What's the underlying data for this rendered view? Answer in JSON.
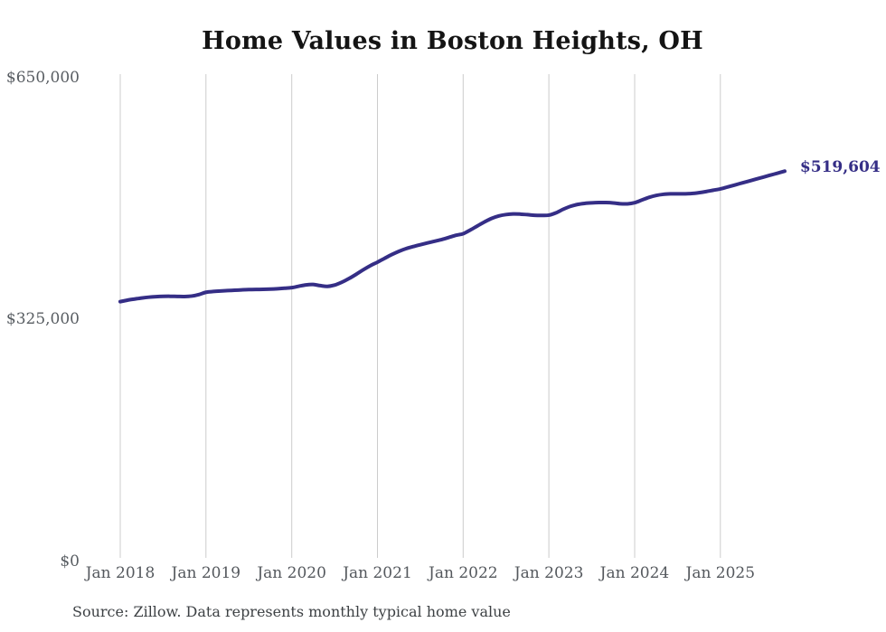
{
  "source": "Source: Zillow. Data represents monthly typical home value",
  "chart_data": {
    "type": "line",
    "title": "Home Values in Boston Heights, OH",
    "series_name": "Typical home value",
    "end_label": "$519,604",
    "end_value": 519604,
    "ylim": [
      0,
      650000
    ],
    "grid": "vertical-only",
    "legend": "none",
    "line_color": "#352e86",
    "end_label_color": "#352e86",
    "grid_color": "#cccccc",
    "axis_label_color": "#585d62",
    "y_ticks": [
      {
        "value": 0,
        "label": "$0"
      },
      {
        "value": 325000,
        "label": "$325,000"
      },
      {
        "value": 650000,
        "label": "$650,000"
      }
    ],
    "x_ticks": [
      "Jan 2018",
      "Jan 2019",
      "Jan 2020",
      "Jan 2021",
      "Jan 2022",
      "Jan 2023",
      "Jan 2024",
      "Jan 2025"
    ],
    "x": [
      "Jan 2018",
      "Feb 2018",
      "Mar 2018",
      "Apr 2018",
      "May 2018",
      "Jun 2018",
      "Jul 2018",
      "Aug 2018",
      "Sep 2018",
      "Oct 2018",
      "Nov 2018",
      "Dec 2018",
      "Jan 2019",
      "Feb 2019",
      "Mar 2019",
      "Apr 2019",
      "May 2019",
      "Jun 2019",
      "Jul 2019",
      "Aug 2019",
      "Sep 2019",
      "Oct 2019",
      "Nov 2019",
      "Dec 2019",
      "Jan 2020",
      "Feb 2020",
      "Mar 2020",
      "Apr 2020",
      "May 2020",
      "Jun 2020",
      "Jul 2020",
      "Aug 2020",
      "Sep 2020",
      "Oct 2020",
      "Nov 2020",
      "Dec 2020",
      "Jan 2021",
      "Feb 2021",
      "Mar 2021",
      "Apr 2021",
      "May 2021",
      "Jun 2021",
      "Jul 2021",
      "Aug 2021",
      "Sep 2021",
      "Oct 2021",
      "Nov 2021",
      "Dec 2021",
      "Jan 2022",
      "Feb 2022",
      "Mar 2022",
      "Apr 2022",
      "May 2022",
      "Jun 2022",
      "Jul 2022",
      "Aug 2022",
      "Sep 2022",
      "Oct 2022",
      "Nov 2022",
      "Dec 2022",
      "Jan 2023",
      "Feb 2023",
      "Mar 2023",
      "Apr 2023",
      "May 2023",
      "Jun 2023",
      "Jul 2023",
      "Aug 2023",
      "Sep 2023",
      "Oct 2023",
      "Nov 2023",
      "Dec 2023",
      "Jan 2024",
      "Feb 2024",
      "Mar 2024",
      "Apr 2024",
      "May 2024",
      "Jun 2024",
      "Jul 2024",
      "Aug 2024",
      "Sep 2024",
      "Oct 2024",
      "Nov 2024",
      "Dec 2024",
      "Jan 2025",
      "Feb 2025",
      "Mar 2025",
      "Apr 2025",
      "May 2025",
      "Jun 2025",
      "Jul 2025",
      "Aug 2025",
      "Sep 2025",
      "Oct 2025"
    ],
    "values": [
      344300,
      346300,
      347800,
      349200,
      350300,
      351000,
      351400,
      351500,
      351300,
      351200,
      351800,
      353800,
      356900,
      357900,
      358600,
      359100,
      359600,
      360100,
      360500,
      360700,
      360800,
      361100,
      361600,
      362300,
      363100,
      365000,
      366800,
      367300,
      365800,
      364800,
      366500,
      370300,
      375200,
      380900,
      387000,
      392600,
      397300,
      402500,
      407500,
      411900,
      415500,
      418300,
      420800,
      423200,
      425500,
      427800,
      430600,
      433500,
      435600,
      440600,
      446100,
      451500,
      456200,
      459500,
      461300,
      462100,
      461900,
      461200,
      460300,
      460100,
      460500,
      463700,
      468400,
      472300,
      474900,
      476300,
      477000,
      477400,
      477400,
      476900,
      475800,
      475700,
      477300,
      480800,
      484400,
      487000,
      488500,
      489100,
      489100,
      489200,
      489600,
      490700,
      492200,
      494000,
      495800,
      498400,
      501000,
      503700,
      506300,
      509000,
      511600,
      514300,
      516900,
      519604
    ]
  }
}
